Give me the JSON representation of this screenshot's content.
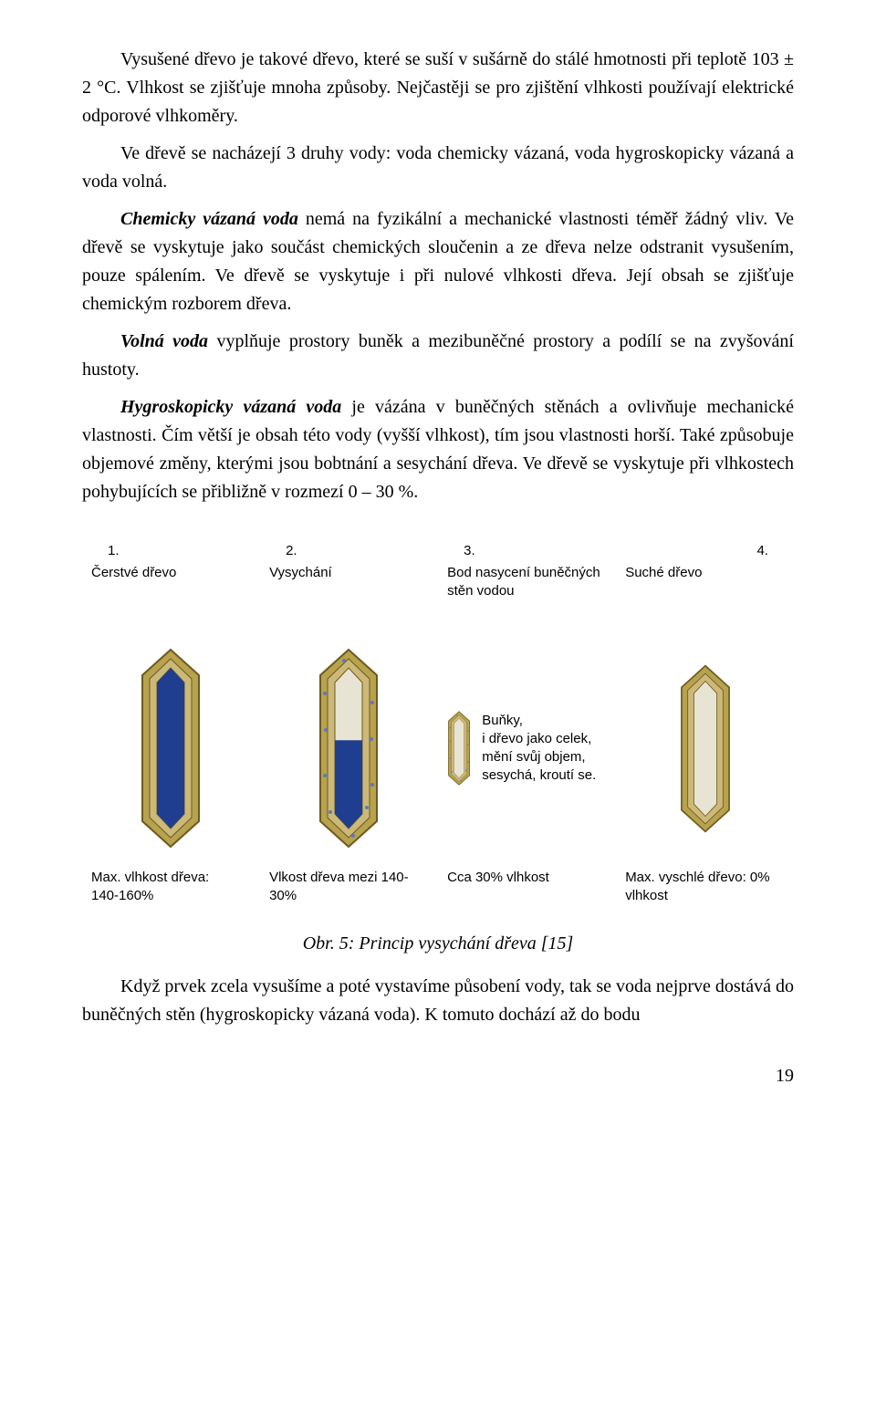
{
  "paragraphs": {
    "p1": "Vysušené dřevo je takové dřevo, které se suší v sušárně do stálé hmotnosti při teplotě 103 ± 2 °C. Vlhkost se zjišťuje mnoha způsoby. Nejčastěji se pro zjištění vlhkosti používají elektrické odporové vlhkoměry.",
    "p2": "Ve dřevě se nacházejí 3 druhy vody: voda chemicky vázaná, voda hygroskopicky vázaná a voda volná.",
    "p3_lead": "Chemicky vázaná voda",
    "p3_rest": " nemá na fyzikální a mechanické vlastnosti téměř žádný vliv. Ve dřevě se vyskytuje jako součást chemických sloučenin a ze dřeva nelze odstranit vysušením, pouze spálením. Ve dřevě se vyskytuje i při nulové vlhkosti dřeva. Její obsah se zjišťuje chemickým rozborem dřeva.",
    "p4_lead": "Volná voda",
    "p4_rest": " vyplňuje prostory buněk a mezibuněčné prostory a podílí se na zvyšování hustoty.",
    "p5_lead": "Hygroskopicky vázaná voda",
    "p5_rest": " je vázána v buněčných stěnách a ovlivňuje mechanické vlastnosti. Čím větší je obsah této vody (vyšší vlhkost), tím jsou vlastnosti horší. Také způsobuje objemové změny, kterými jsou bobtnání a sesychání dřeva. Ve dřevě se vyskytuje při vlhkostech pohybujících se přibližně v rozmezí 0 – 30 %."
  },
  "figure": {
    "columns": [
      {
        "num": "1.",
        "title": "Čerstvé dřevo",
        "bottom": "Max. vlhkost dřeva:\n140-160%",
        "fill_level": 1.0,
        "scale": 1.0
      },
      {
        "num": "2.",
        "title": "Vysychání",
        "bottom": "Vlkost dřeva mezi 140-30%",
        "fill_level": 0.55,
        "scale": 1.0
      },
      {
        "num": "3.",
        "title": "Bod nasycení buněčných stěn vodou",
        "bottom": "Cca 30% vlhkost",
        "fill_level": 0.0,
        "scale": 1.0
      },
      {
        "num": "4.",
        "title": "Suché dřevo",
        "bottom": "Max. vyschlé dřevo: 0% vlhkost",
        "fill_level": 0.0,
        "scale": 0.82
      }
    ],
    "side_note": "Buňky,\ni dřevo jako celek, mění svůj objem, sesychá, kroutí se.",
    "colors": {
      "wall_outer": "#b7a24e",
      "wall_inner": "#ccb878",
      "wall_stroke": "#6e5a1e",
      "water": "#1f3e8f",
      "cavity": "#e8e4d4",
      "speck": "#5b78c2"
    }
  },
  "caption": "Obr. 5: Princip vysychání dřeva [15]",
  "p_after": "Když prvek zcela vysušíme a poté vystavíme působení vody, tak se voda nejprve dostává do buněčných stěn (hygroskopicky vázaná voda). K tomuto dochází až do bodu",
  "page_number": "19"
}
